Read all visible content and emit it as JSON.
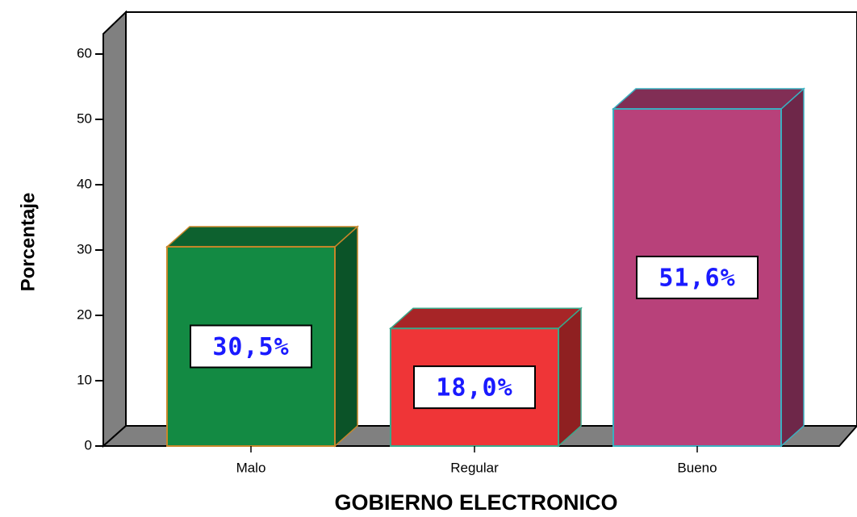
{
  "chart_data": {
    "type": "bar3d",
    "x_label": "GOBIERNO ELECTRONICO",
    "y_label": "Porcentaje",
    "categories": [
      "Malo",
      "Regular",
      "Bueno"
    ],
    "values": [
      30.5,
      18.0,
      51.6
    ],
    "value_labels": [
      "30,5%",
      "18,0%",
      "51,6%"
    ],
    "colors": [
      "#138a43",
      "#ef3537",
      "#b8417a"
    ],
    "ylim": [
      0,
      60
    ],
    "yticks": [
      0,
      10,
      20,
      30,
      40,
      50,
      60
    ]
  }
}
